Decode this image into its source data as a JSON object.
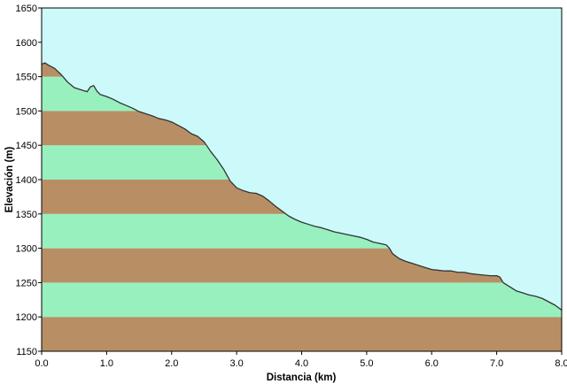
{
  "chart_data": {
    "type": "area",
    "xlabel": "Distancia  (km)",
    "ylabel": "Elevación (m)",
    "xlim": [
      0,
      8
    ],
    "ylim": [
      1150,
      1650
    ],
    "x_ticks": [
      "0.0",
      "1.0",
      "2.0",
      "3.0",
      "4.0",
      "5.0",
      "6.0",
      "7.0",
      "8.0"
    ],
    "y_ticks": [
      "1150",
      "1200",
      "1250",
      "1300",
      "1350",
      "1400",
      "1450",
      "1500",
      "1550",
      "1600",
      "1650"
    ],
    "grid": false,
    "legend": "none",
    "band_step": 50,
    "colors": {
      "sky": "#ccfafa",
      "band_brown": "#b88f65",
      "band_green": "#98f0bf",
      "profile_line": "#333333",
      "frame": "#000000"
    },
    "series": [
      {
        "x": [
          0.0,
          0.05,
          0.1,
          0.2,
          0.3,
          0.4,
          0.45,
          0.5,
          0.6,
          0.7,
          0.75,
          0.8,
          0.85,
          0.9,
          1.0,
          1.1,
          1.2,
          1.3,
          1.4,
          1.5,
          1.6,
          1.7,
          1.8,
          1.9,
          2.0,
          2.1,
          2.2,
          2.3,
          2.4,
          2.5,
          2.6,
          2.7,
          2.8,
          2.9,
          3.0,
          3.1,
          3.2,
          3.3,
          3.4,
          3.5,
          3.6,
          3.7,
          3.8,
          3.9,
          4.0,
          4.1,
          4.2,
          4.3,
          4.4,
          4.5,
          4.6,
          4.7,
          4.8,
          4.9,
          5.0,
          5.1,
          5.2,
          5.3,
          5.35,
          5.4,
          5.5,
          5.6,
          5.7,
          5.8,
          5.9,
          6.0,
          6.1,
          6.2,
          6.3,
          6.4,
          6.5,
          6.6,
          6.7,
          6.8,
          6.9,
          7.0,
          7.05,
          7.1,
          7.2,
          7.3,
          7.4,
          7.5,
          7.6,
          7.7,
          7.8,
          7.9,
          8.0
        ],
        "y": [
          1568,
          1570,
          1567,
          1562,
          1553,
          1542,
          1538,
          1534,
          1531,
          1528,
          1535,
          1537,
          1529,
          1524,
          1521,
          1517,
          1512,
          1508,
          1504,
          1499,
          1496,
          1493,
          1489,
          1487,
          1484,
          1479,
          1474,
          1467,
          1463,
          1455,
          1441,
          1429,
          1415,
          1398,
          1388,
          1384,
          1381,
          1380,
          1376,
          1369,
          1361,
          1354,
          1347,
          1342,
          1338,
          1335,
          1332,
          1330,
          1327,
          1324,
          1322,
          1320,
          1318,
          1316,
          1313,
          1309,
          1307,
          1305,
          1300,
          1292,
          1285,
          1281,
          1278,
          1275,
          1272,
          1269,
          1268,
          1267,
          1267,
          1265,
          1265,
          1263,
          1262,
          1261,
          1260,
          1260,
          1258,
          1250,
          1244,
          1238,
          1235,
          1232,
          1230,
          1227,
          1222,
          1217,
          1210
        ]
      }
    ]
  }
}
